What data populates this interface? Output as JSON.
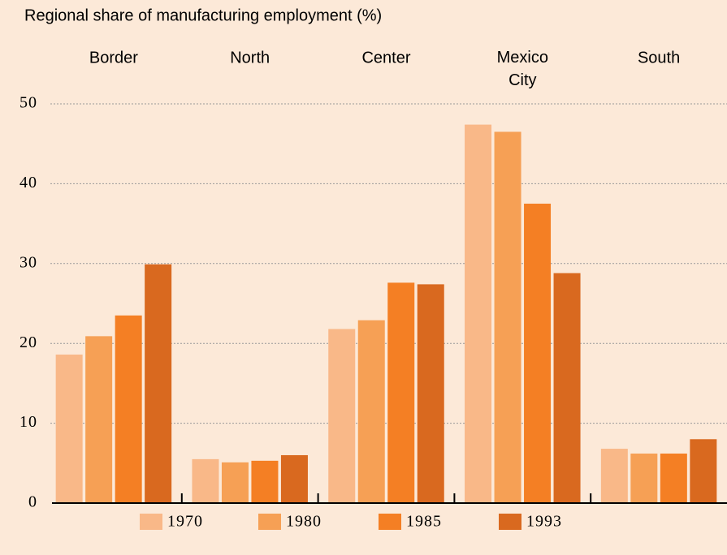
{
  "chart_data": {
    "type": "bar",
    "title": "Regional share of manufacturing employment (%)",
    "categories": [
      "Border",
      "North",
      "Center",
      "Mexico City",
      "South"
    ],
    "series": [
      {
        "name": "1970",
        "color": "#f9b888",
        "values": [
          18.6,
          5.5,
          21.8,
          47.4,
          6.8
        ]
      },
      {
        "name": "1980",
        "color": "#f6a055",
        "values": [
          20.9,
          5.1,
          22.9,
          46.5,
          6.2
        ]
      },
      {
        "name": "1985",
        "color": "#f47f24",
        "values": [
          23.5,
          5.3,
          27.6,
          37.5,
          6.2
        ]
      },
      {
        "name": "1993",
        "color": "#d9691f",
        "values": [
          29.9,
          6.0,
          27.4,
          28.8,
          8.0
        ]
      }
    ],
    "ylim": [
      0,
      50
    ],
    "yticks": [
      0,
      10,
      20,
      30,
      40,
      50
    ],
    "grid": true,
    "legend": "bottom"
  }
}
